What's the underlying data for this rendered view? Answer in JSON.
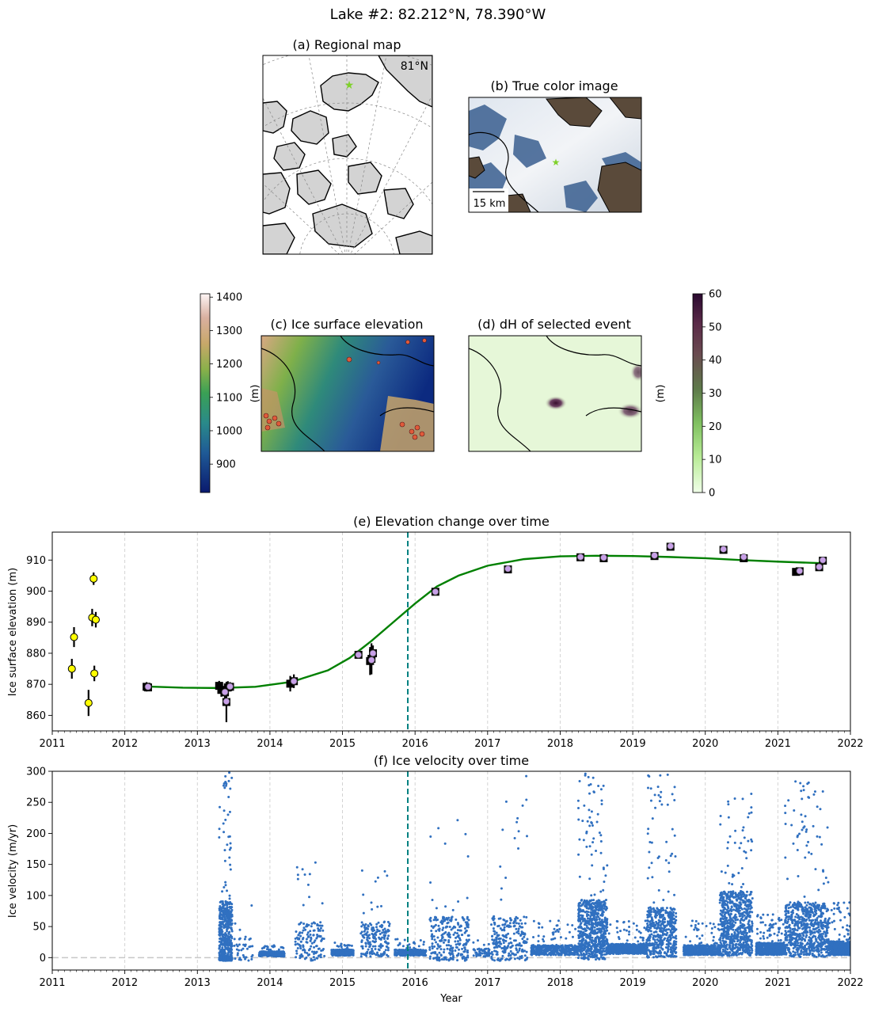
{
  "figure": {
    "suptitle": "Lake #2: 82.212°N, 78.390°W"
  },
  "panel_a": {
    "title": "(a) Regional map",
    "lat_label": "81°N",
    "land_color": "#d3d3d3",
    "marker_color": "#7fd12a"
  },
  "panel_b": {
    "title": "(b) True color image",
    "scalebar_label": "15 km"
  },
  "panel_c": {
    "title": "(c) Ice surface elevation",
    "colorbar_label": "(m)",
    "colorbar_ticks": [
      900,
      1000,
      1100,
      1200,
      1300,
      1400
    ],
    "colorbar_range": [
      815,
      1410
    ]
  },
  "panel_d": {
    "title": "(d) dH of selected event",
    "colorbar_label": "(m)",
    "colorbar_ticks": [
      0,
      10,
      20,
      30,
      40,
      50,
      60
    ],
    "colorbar_range": [
      0,
      60
    ]
  },
  "chart_data": [
    {
      "type": "scatter",
      "title": "(e) Elevation change over time",
      "xlabel": "",
      "ylabel": "Ice surface elevation (m)",
      "xlim": [
        2011,
        2022
      ],
      "ylim": [
        855,
        919
      ],
      "x_ticks": [
        2011,
        2012,
        2013,
        2014,
        2015,
        2016,
        2017,
        2018,
        2019,
        2020,
        2021,
        2022
      ],
      "y_ticks": [
        860,
        870,
        880,
        890,
        900,
        910
      ],
      "grid": "vertical dashed at years",
      "event_line_x": 2015.9,
      "colors": {
        "fit": "#008000",
        "event": "#008080",
        "yellow": "#ffff00",
        "purple": "#c8a0e8",
        "square": "#000000"
      },
      "series": [
        {
          "style": "yellow-circles",
          "points": [
            {
              "x": 2011.27,
              "y": 875.0,
              "err": 3.2
            },
            {
              "x": 2011.3,
              "y": 885.2,
              "err": 3.2
            },
            {
              "x": 2011.5,
              "y": 864.0,
              "err": 4.2
            },
            {
              "x": 2011.55,
              "y": 891.5,
              "err": 2.8
            },
            {
              "x": 2011.57,
              "y": 904.0,
              "err": 2.0
            },
            {
              "x": 2011.58,
              "y": 873.5,
              "err": 2.5
            },
            {
              "x": 2011.6,
              "y": 890.8,
              "err": 2.5
            }
          ]
        },
        {
          "style": "squares-with-errorbars",
          "points": [
            {
              "x": 2012.3,
              "y": 869.2,
              "err": 1.5
            },
            {
              "x": 2012.32,
              "y": 869.0,
              "err": 1.2
            },
            {
              "x": 2013.3,
              "y": 869.5,
              "err": 1.6
            },
            {
              "x": 2013.33,
              "y": 868.2,
              "err": 2.2
            },
            {
              "x": 2013.38,
              "y": 867.4,
              "err": 2.8
            },
            {
              "x": 2013.4,
              "y": 864.3,
              "err": 6.5
            },
            {
              "x": 2013.42,
              "y": 869.0,
              "err": 2.0
            },
            {
              "x": 2013.45,
              "y": 869.2,
              "err": 1.5
            },
            {
              "x": 2014.28,
              "y": 870.2,
              "err": 2.5
            },
            {
              "x": 2014.33,
              "y": 871.0,
              "err": 2.2
            },
            {
              "x": 2015.22,
              "y": 879.5,
              "err": 1.2
            },
            {
              "x": 2015.38,
              "y": 877.5,
              "err": 4.5
            },
            {
              "x": 2015.4,
              "y": 878.2,
              "err": 5.0
            },
            {
              "x": 2015.42,
              "y": 880.0,
              "err": 2.5
            },
            {
              "x": 2016.28,
              "y": 899.8,
              "err": 1.0
            },
            {
              "x": 2017.28,
              "y": 907.0,
              "err": 1.0
            },
            {
              "x": 2018.28,
              "y": 910.9,
              "err": 1.0
            },
            {
              "x": 2018.6,
              "y": 910.6,
              "err": 1.0
            },
            {
              "x": 2019.3,
              "y": 911.3,
              "err": 1.0
            },
            {
              "x": 2019.52,
              "y": 914.3,
              "err": 0.8
            },
            {
              "x": 2020.25,
              "y": 913.3,
              "err": 0.8
            },
            {
              "x": 2020.53,
              "y": 910.6,
              "err": 1.2
            },
            {
              "x": 2021.25,
              "y": 906.2,
              "err": 1.0
            },
            {
              "x": 2021.3,
              "y": 906.4,
              "err": 1.0
            },
            {
              "x": 2021.57,
              "y": 907.7,
              "err": 1.0
            },
            {
              "x": 2021.62,
              "y": 909.8,
              "err": 1.0
            }
          ]
        },
        {
          "style": "purple-circles",
          "points": [
            {
              "x": 2012.32,
              "y": 869.2
            },
            {
              "x": 2013.38,
              "y": 867.5
            },
            {
              "x": 2013.4,
              "y": 864.5
            },
            {
              "x": 2013.45,
              "y": 869.3
            },
            {
              "x": 2014.33,
              "y": 871.0
            },
            {
              "x": 2015.22,
              "y": 879.5
            },
            {
              "x": 2015.4,
              "y": 877.8
            },
            {
              "x": 2015.42,
              "y": 880.0
            },
            {
              "x": 2016.28,
              "y": 899.8
            },
            {
              "x": 2017.28,
              "y": 907.2
            },
            {
              "x": 2018.28,
              "y": 911.0
            },
            {
              "x": 2018.6,
              "y": 910.8
            },
            {
              "x": 2019.3,
              "y": 911.5
            },
            {
              "x": 2019.52,
              "y": 914.5
            },
            {
              "x": 2020.25,
              "y": 913.5
            },
            {
              "x": 2020.53,
              "y": 911.0
            },
            {
              "x": 2021.3,
              "y": 906.5
            },
            {
              "x": 2021.57,
              "y": 907.8
            },
            {
              "x": 2021.62,
              "y": 910.0
            }
          ]
        },
        {
          "style": "fit-line",
          "x": [
            2012.3,
            2012.8,
            2013.3,
            2013.8,
            2014.3,
            2014.8,
            2015.1,
            2015.4,
            2015.7,
            2016.0,
            2016.3,
            2016.6,
            2017.0,
            2017.5,
            2018.0,
            2018.5,
            2019.0,
            2019.5,
            2020.0,
            2020.5,
            2021.0,
            2021.6
          ],
          "y": [
            869.3,
            868.9,
            868.8,
            869.2,
            870.8,
            874.5,
            878.5,
            884.0,
            890.0,
            896.0,
            901.5,
            905.0,
            908.2,
            910.3,
            911.2,
            911.4,
            911.3,
            911.0,
            910.6,
            910.0,
            909.5,
            909.0
          ]
        }
      ]
    },
    {
      "type": "scatter",
      "title": "(f) Ice velocity over time",
      "xlabel": "Year",
      "ylabel": "Ice velocity (m/yr)",
      "xlim": [
        2011,
        2022
      ],
      "ylim": [
        -20,
        300
      ],
      "x_ticks": [
        2011,
        2012,
        2013,
        2014,
        2015,
        2016,
        2017,
        2018,
        2019,
        2020,
        2021,
        2022
      ],
      "y_ticks": [
        0,
        50,
        100,
        150,
        200,
        250,
        300
      ],
      "grid": "vertical dashed at years",
      "event_line_x": 2015.9,
      "zero_line": 0,
      "point_color": "#3070c0",
      "clusters": [
        {
          "start": 2013.3,
          "end": 2013.48,
          "base": 35,
          "spread": 70,
          "peak": 300,
          "count": 520
        },
        {
          "start": 2013.5,
          "end": 2013.78,
          "base": 12,
          "spread": 25,
          "peak": 85,
          "count": 40
        },
        {
          "start": 2013.85,
          "end": 2014.2,
          "base": 6,
          "spread": 5,
          "peak": 20,
          "count": 300
        },
        {
          "start": 2014.35,
          "end": 2014.75,
          "base": 25,
          "spread": 40,
          "peak": 165,
          "count": 140
        },
        {
          "start": 2014.85,
          "end": 2015.15,
          "base": 8,
          "spread": 6,
          "peak": 25,
          "count": 320
        },
        {
          "start": 2015.25,
          "end": 2015.65,
          "base": 30,
          "spread": 35,
          "peak": 150,
          "count": 180
        },
        {
          "start": 2015.72,
          "end": 2016.15,
          "base": 8,
          "spread": 6,
          "peak": 30,
          "count": 260
        },
        {
          "start": 2016.2,
          "end": 2016.75,
          "base": 30,
          "spread": 45,
          "peak": 235,
          "count": 260
        },
        {
          "start": 2016.8,
          "end": 2017.05,
          "base": 8,
          "spread": 8,
          "peak": 30,
          "count": 60
        },
        {
          "start": 2017.05,
          "end": 2017.55,
          "base": 30,
          "spread": 45,
          "peak": 300,
          "count": 240
        },
        {
          "start": 2017.6,
          "end": 2018.25,
          "base": 12,
          "spread": 10,
          "peak": 60,
          "count": 420
        },
        {
          "start": 2018.25,
          "end": 2018.65,
          "base": 45,
          "spread": 60,
          "peak": 300,
          "count": 700
        },
        {
          "start": 2018.65,
          "end": 2019.2,
          "base": 14,
          "spread": 10,
          "peak": 60,
          "count": 600
        },
        {
          "start": 2019.2,
          "end": 2019.6,
          "base": 40,
          "spread": 50,
          "peak": 300,
          "count": 480
        },
        {
          "start": 2019.7,
          "end": 2020.2,
          "base": 12,
          "spread": 10,
          "peak": 60,
          "count": 480
        },
        {
          "start": 2020.2,
          "end": 2020.65,
          "base": 55,
          "spread": 65,
          "peak": 270,
          "count": 720
        },
        {
          "start": 2020.7,
          "end": 2021.1,
          "base": 14,
          "spread": 12,
          "peak": 70,
          "count": 600
        },
        {
          "start": 2021.1,
          "end": 2021.7,
          "base": 45,
          "spread": 55,
          "peak": 290,
          "count": 720
        },
        {
          "start": 2021.7,
          "end": 2022.0,
          "base": 15,
          "spread": 14,
          "peak": 90,
          "count": 520
        }
      ]
    }
  ]
}
